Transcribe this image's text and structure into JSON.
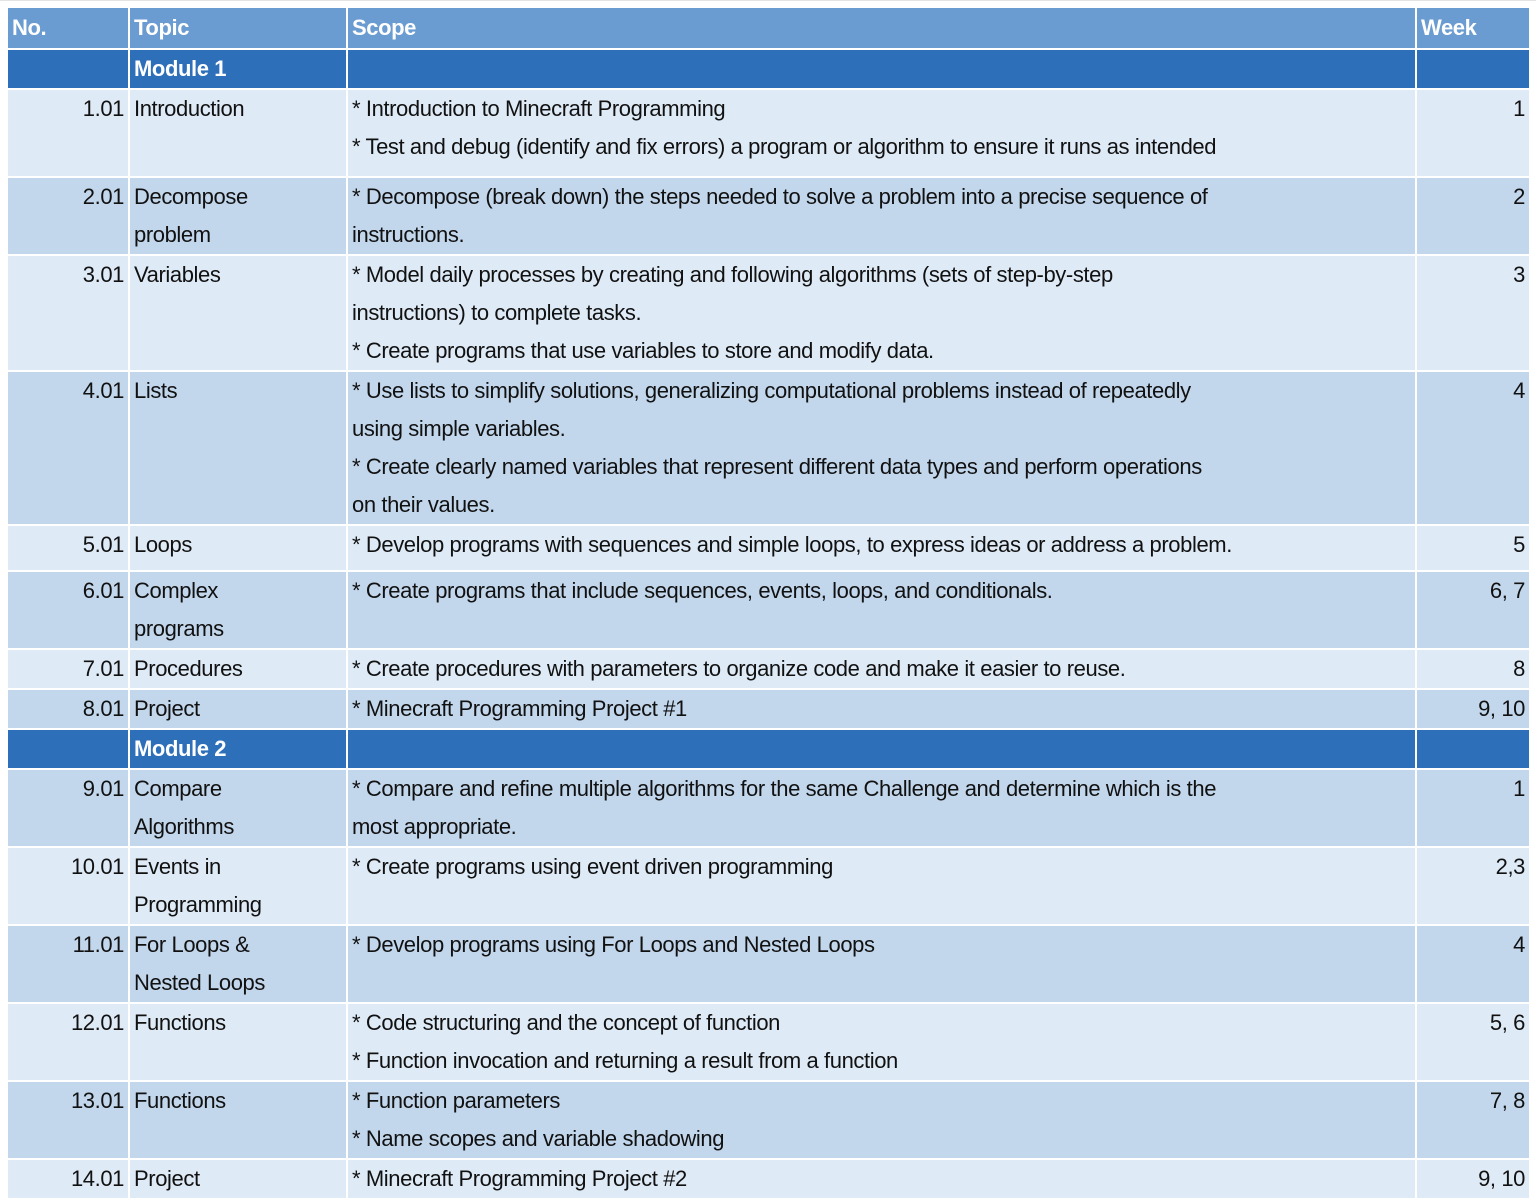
{
  "headers": {
    "no": "No.",
    "topic": "Topic",
    "scope": "Scope",
    "week": "Week"
  },
  "colors": {
    "header": "#6a9bd1",
    "module": "#2e6fba",
    "row_light": "#deeaf6",
    "row_dark": "#c2d6ec"
  },
  "rows": [
    {
      "type": "module",
      "topic": [
        "Module 1"
      ]
    },
    {
      "type": "item",
      "shade": "light",
      "no": "1.01",
      "topic": [
        "Introduction"
      ],
      "scope": [
        "* Introduction to Minecraft Programming",
        "* Test and debug (identify and fix errors) a program or algorithm to ensure it runs as intended"
      ],
      "week": "1",
      "h": 86
    },
    {
      "type": "item",
      "shade": "dark",
      "no": "2.01",
      "topic": [
        "Decompose",
        "problem"
      ],
      "scope": [
        "* Decompose (break down) the steps needed to solve a problem into a precise sequence of",
        "instructions."
      ],
      "week": "2",
      "h": 74
    },
    {
      "type": "item",
      "shade": "light",
      "no": "3.01",
      "topic": [
        "Variables"
      ],
      "scope": [
        "* Model daily processes by creating and following algorithms (sets of step-by-step",
        "instructions) to complete tasks.",
        "* Create programs that use variables to store and modify data."
      ],
      "week": "3",
      "h": 112
    },
    {
      "type": "item",
      "shade": "dark",
      "no": "4.01",
      "topic": [
        "Lists"
      ],
      "scope": [
        "* Use lists to simplify solutions, generalizing computational problems instead of repeatedly",
        "using simple variables.",
        "* Create clearly named variables that represent different data types and perform operations",
        "on their values."
      ],
      "week": "4",
      "h": 150
    },
    {
      "type": "item",
      "shade": "light",
      "no": "5.01",
      "topic": [
        "Loops"
      ],
      "scope": [
        "* Develop programs with sequences and simple loops, to express ideas or address a problem."
      ],
      "week": "5",
      "h": 44
    },
    {
      "type": "item",
      "shade": "dark",
      "no": "6.01",
      "topic": [
        "Complex",
        "programs"
      ],
      "scope": [
        "* Create programs that include sequences, events, loops, and conditionals."
      ],
      "week": "6, 7",
      "h": 74
    },
    {
      "type": "item",
      "shade": "light",
      "no": "7.01",
      "topic": [
        "Procedures"
      ],
      "scope": [
        "* Create procedures with parameters to organize code and make it easier to reuse."
      ],
      "week": "8",
      "h": 38
    },
    {
      "type": "item",
      "shade": "dark",
      "no": "8.01",
      "topic": [
        "Project"
      ],
      "scope": [
        "* Minecraft Programming Project #1"
      ],
      "week": "9, 10",
      "h": 34
    },
    {
      "type": "module",
      "topic": [
        "Module 2"
      ]
    },
    {
      "type": "item",
      "shade": "dark",
      "no": "9.01",
      "topic": [
        "Compare",
        "Algorithms"
      ],
      "scope": [
        "* Compare and refine multiple algorithms for the same Challenge and determine which is the",
        "most appropriate."
      ],
      "week": "1",
      "h": 74
    },
    {
      "type": "item",
      "shade": "light",
      "no": "10.01",
      "topic": [
        "Events in",
        "Programming"
      ],
      "scope": [
        "* Create programs using event driven programming"
      ],
      "week": "2,3",
      "h": 74
    },
    {
      "type": "item",
      "shade": "dark",
      "no": "11.01",
      "topic": [
        "For Loops &",
        "Nested Loops"
      ],
      "scope": [
        "* Develop programs using For Loops and Nested Loops"
      ],
      "week": "4",
      "h": 74
    },
    {
      "type": "item",
      "shade": "light",
      "no": "12.01",
      "topic": [
        "Functions"
      ],
      "scope": [
        "* Code structuring and the concept of function",
        "* Function invocation and returning a result from a function"
      ],
      "week": "5, 6",
      "h": 74
    },
    {
      "type": "item",
      "shade": "dark",
      "no": "13.01",
      "topic": [
        "Functions"
      ],
      "scope": [
        "* Function parameters",
        "* Name scopes and variable shadowing"
      ],
      "week": "7, 8",
      "h": 74
    },
    {
      "type": "item",
      "shade": "light",
      "no": "14.01",
      "topic": [
        "Project"
      ],
      "scope": [
        "* Minecraft Programming Project #2"
      ],
      "week": "9, 10",
      "h": 38
    }
  ]
}
